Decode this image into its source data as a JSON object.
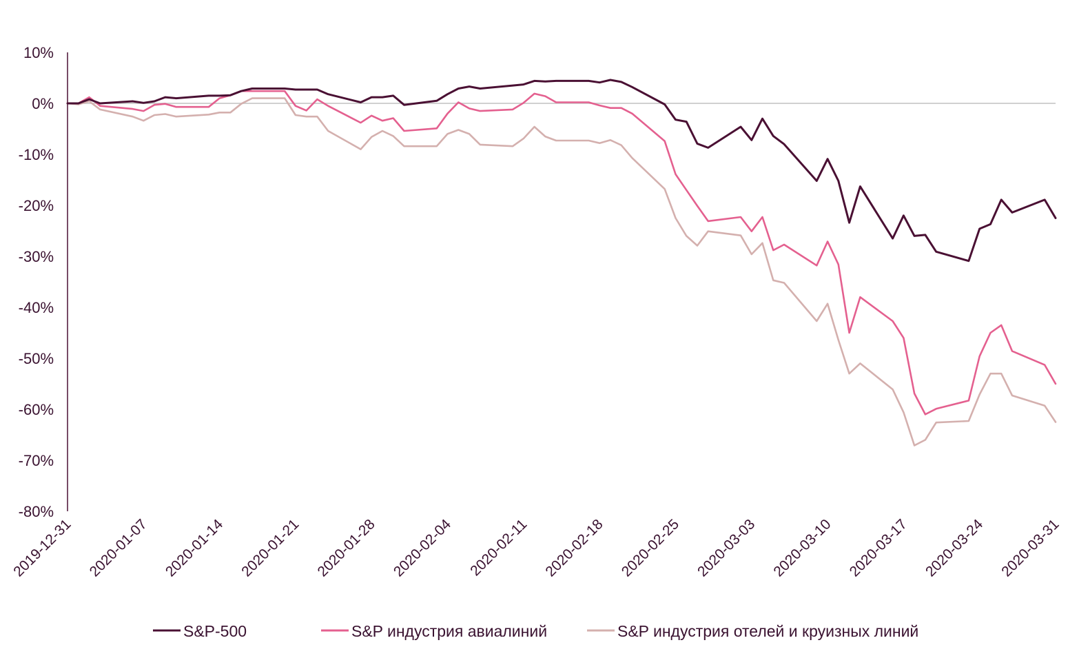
{
  "chart_data": {
    "type": "line",
    "title": "",
    "xlabel": "",
    "ylabel": "",
    "ylim": [
      -80,
      10
    ],
    "y_ticks": [
      "10%",
      "0%",
      "-10%",
      "-20%",
      "-30%",
      "-40%",
      "-50%",
      "-60%",
      "-70%",
      "-80%"
    ],
    "x_range": [
      "2019-12-31",
      "2020-03-31"
    ],
    "x_ticks": [
      "2019-12-31",
      "2020-01-07",
      "2020-01-14",
      "2020-01-21",
      "2020-01-28",
      "2020-02-04",
      "2020-02-11",
      "2020-02-18",
      "2020-02-25",
      "2020-03-03",
      "2020-03-10",
      "2020-03-17",
      "2020-03-24",
      "2020-03-31"
    ],
    "grid": false,
    "zero_line": true,
    "legend_position": "bottom",
    "series": [
      {
        "name": "S&P-500",
        "color": "#4a1033",
        "points": [
          [
            "2019-12-31",
            0
          ],
          [
            "2020-01-01",
            0
          ],
          [
            "2020-01-02",
            0.8
          ],
          [
            "2020-01-03",
            0
          ],
          [
            "2020-01-06",
            0.4
          ],
          [
            "2020-01-07",
            0.1
          ],
          [
            "2020-01-08",
            0.4
          ],
          [
            "2020-01-09",
            1.2
          ],
          [
            "2020-01-10",
            1.0
          ],
          [
            "2020-01-13",
            1.5
          ],
          [
            "2020-01-14",
            1.5
          ],
          [
            "2020-01-15",
            1.6
          ],
          [
            "2020-01-16",
            2.4
          ],
          [
            "2020-01-17",
            2.9
          ],
          [
            "2020-01-20",
            2.9
          ],
          [
            "2020-01-21",
            2.7
          ],
          [
            "2020-01-22",
            2.7
          ],
          [
            "2020-01-23",
            2.7
          ],
          [
            "2020-01-24",
            1.8
          ],
          [
            "2020-01-27",
            0.2
          ],
          [
            "2020-01-28",
            1.2
          ],
          [
            "2020-01-29",
            1.2
          ],
          [
            "2020-01-30",
            1.5
          ],
          [
            "2020-01-31",
            -0.3
          ],
          [
            "2020-02-03",
            0.5
          ],
          [
            "2020-02-04",
            1.8
          ],
          [
            "2020-02-05",
            2.9
          ],
          [
            "2020-02-06",
            3.3
          ],
          [
            "2020-02-07",
            2.9
          ],
          [
            "2020-02-10",
            3.5
          ],
          [
            "2020-02-11",
            3.7
          ],
          [
            "2020-02-12",
            4.4
          ],
          [
            "2020-02-13",
            4.3
          ],
          [
            "2020-02-14",
            4.4
          ],
          [
            "2020-02-17",
            4.4
          ],
          [
            "2020-02-18",
            4.1
          ],
          [
            "2020-02-19",
            4.6
          ],
          [
            "2020-02-20",
            4.2
          ],
          [
            "2020-02-21",
            3.2
          ],
          [
            "2020-02-24",
            -0.2
          ],
          [
            "2020-02-25",
            -3.2
          ],
          [
            "2020-02-26",
            -3.6
          ],
          [
            "2020-02-27",
            -7.9
          ],
          [
            "2020-02-28",
            -8.7
          ],
          [
            "2020-03-02",
            -4.6
          ],
          [
            "2020-03-03",
            -7.2
          ],
          [
            "2020-03-04",
            -3.0
          ],
          [
            "2020-03-05",
            -6.4
          ],
          [
            "2020-03-06",
            -8.0
          ],
          [
            "2020-03-09",
            -15.2
          ],
          [
            "2020-03-10",
            -10.9
          ],
          [
            "2020-03-11",
            -15.2
          ],
          [
            "2020-03-12",
            -23.4
          ],
          [
            "2020-03-13",
            -16.3
          ],
          [
            "2020-03-16",
            -26.5
          ],
          [
            "2020-03-17",
            -22.0
          ],
          [
            "2020-03-18",
            -26.0
          ],
          [
            "2020-03-19",
            -25.8
          ],
          [
            "2020-03-20",
            -29.1
          ],
          [
            "2020-03-23",
            -30.9
          ],
          [
            "2020-03-24",
            -24.6
          ],
          [
            "2020-03-25",
            -23.7
          ],
          [
            "2020-03-26",
            -18.9
          ],
          [
            "2020-03-27",
            -21.4
          ],
          [
            "2020-03-30",
            -18.9
          ],
          [
            "2020-03-31",
            -22.5
          ]
        ]
      },
      {
        "name": "S&P индустрия авиалиний",
        "color": "#e4608f",
        "points": [
          [
            "2019-12-31",
            0
          ],
          [
            "2020-01-01",
            0
          ],
          [
            "2020-01-02",
            1.2
          ],
          [
            "2020-01-03",
            -0.5
          ],
          [
            "2020-01-06",
            -1.1
          ],
          [
            "2020-01-07",
            -1.5
          ],
          [
            "2020-01-08",
            -0.3
          ],
          [
            "2020-01-09",
            -0.1
          ],
          [
            "2020-01-10",
            -0.7
          ],
          [
            "2020-01-13",
            -0.7
          ],
          [
            "2020-01-14",
            1.0
          ],
          [
            "2020-01-15",
            1.6
          ],
          [
            "2020-01-16",
            2.4
          ],
          [
            "2020-01-17",
            2.4
          ],
          [
            "2020-01-20",
            2.4
          ],
          [
            "2020-01-21",
            -0.5
          ],
          [
            "2020-01-22",
            -1.4
          ],
          [
            "2020-01-23",
            0.8
          ],
          [
            "2020-01-24",
            -0.5
          ],
          [
            "2020-01-27",
            -3.8
          ],
          [
            "2020-01-28",
            -2.4
          ],
          [
            "2020-01-29",
            -3.4
          ],
          [
            "2020-01-30",
            -2.9
          ],
          [
            "2020-01-31",
            -5.4
          ],
          [
            "2020-02-03",
            -4.9
          ],
          [
            "2020-02-04",
            -2.0
          ],
          [
            "2020-02-05",
            0.2
          ],
          [
            "2020-02-06",
            -1.0
          ],
          [
            "2020-02-07",
            -1.5
          ],
          [
            "2020-02-10",
            -1.2
          ],
          [
            "2020-02-11",
            0.1
          ],
          [
            "2020-02-12",
            1.9
          ],
          [
            "2020-02-13",
            1.4
          ],
          [
            "2020-02-14",
            0.2
          ],
          [
            "2020-02-17",
            0.2
          ],
          [
            "2020-02-18",
            -0.4
          ],
          [
            "2020-02-19",
            -0.9
          ],
          [
            "2020-02-20",
            -0.9
          ],
          [
            "2020-02-21",
            -2.0
          ],
          [
            "2020-02-24",
            -7.4
          ],
          [
            "2020-02-25",
            -13.9
          ],
          [
            "2020-02-26",
            -17.0
          ],
          [
            "2020-02-27",
            -20.1
          ],
          [
            "2020-02-28",
            -23.1
          ],
          [
            "2020-03-02",
            -22.3
          ],
          [
            "2020-03-03",
            -25.1
          ],
          [
            "2020-03-04",
            -22.3
          ],
          [
            "2020-03-05",
            -28.8
          ],
          [
            "2020-03-06",
            -27.7
          ],
          [
            "2020-03-09",
            -31.8
          ],
          [
            "2020-03-10",
            -27.1
          ],
          [
            "2020-03-11",
            -31.6
          ],
          [
            "2020-03-12",
            -45.0
          ],
          [
            "2020-03-13",
            -38.0
          ],
          [
            "2020-03-16",
            -42.7
          ],
          [
            "2020-03-17",
            -46.0
          ],
          [
            "2020-03-18",
            -56.9
          ],
          [
            "2020-03-19",
            -61.0
          ],
          [
            "2020-03-20",
            -59.9
          ],
          [
            "2020-03-23",
            -58.3
          ],
          [
            "2020-03-24",
            -49.6
          ],
          [
            "2020-03-25",
            -45.0
          ],
          [
            "2020-03-26",
            -43.5
          ],
          [
            "2020-03-27",
            -48.6
          ],
          [
            "2020-03-30",
            -51.3
          ],
          [
            "2020-03-31",
            -55.0
          ]
        ]
      },
      {
        "name": "S&P индустрия отелей и круизных линий",
        "color": "#d4b0ae",
        "points": [
          [
            "2019-12-31",
            0
          ],
          [
            "2020-01-01",
            -0.2
          ],
          [
            "2020-01-02",
            0.4
          ],
          [
            "2020-01-03",
            -1.2
          ],
          [
            "2020-01-06",
            -2.6
          ],
          [
            "2020-01-07",
            -3.4
          ],
          [
            "2020-01-08",
            -2.3
          ],
          [
            "2020-01-09",
            -2.1
          ],
          [
            "2020-01-10",
            -2.6
          ],
          [
            "2020-01-13",
            -2.2
          ],
          [
            "2020-01-14",
            -1.8
          ],
          [
            "2020-01-15",
            -1.8
          ],
          [
            "2020-01-16",
            -0.1
          ],
          [
            "2020-01-17",
            1.0
          ],
          [
            "2020-01-20",
            1.0
          ],
          [
            "2020-01-21",
            -2.3
          ],
          [
            "2020-01-22",
            -2.6
          ],
          [
            "2020-01-23",
            -2.6
          ],
          [
            "2020-01-24",
            -5.4
          ],
          [
            "2020-01-27",
            -9.0
          ],
          [
            "2020-01-28",
            -6.6
          ],
          [
            "2020-01-29",
            -5.4
          ],
          [
            "2020-01-30",
            -6.4
          ],
          [
            "2020-01-31",
            -8.4
          ],
          [
            "2020-02-03",
            -8.4
          ],
          [
            "2020-02-04",
            -6.0
          ],
          [
            "2020-02-05",
            -5.2
          ],
          [
            "2020-02-06",
            -6.0
          ],
          [
            "2020-02-07",
            -8.1
          ],
          [
            "2020-02-10",
            -8.4
          ],
          [
            "2020-02-11",
            -6.9
          ],
          [
            "2020-02-12",
            -4.6
          ],
          [
            "2020-02-13",
            -6.5
          ],
          [
            "2020-02-14",
            -7.3
          ],
          [
            "2020-02-17",
            -7.3
          ],
          [
            "2020-02-18",
            -7.8
          ],
          [
            "2020-02-19",
            -7.2
          ],
          [
            "2020-02-20",
            -8.2
          ],
          [
            "2020-02-21",
            -10.7
          ],
          [
            "2020-02-24",
            -16.8
          ],
          [
            "2020-02-25",
            -22.5
          ],
          [
            "2020-02-26",
            -26.0
          ],
          [
            "2020-02-27",
            -27.9
          ],
          [
            "2020-02-28",
            -25.1
          ],
          [
            "2020-03-02",
            -25.9
          ],
          [
            "2020-03-03",
            -29.6
          ],
          [
            "2020-03-04",
            -27.4
          ],
          [
            "2020-03-05",
            -34.7
          ],
          [
            "2020-03-06",
            -35.2
          ],
          [
            "2020-03-09",
            -42.7
          ],
          [
            "2020-03-10",
            -39.3
          ],
          [
            "2020-03-11",
            -46.4
          ],
          [
            "2020-03-12",
            -53.0
          ],
          [
            "2020-03-13",
            -51.0
          ],
          [
            "2020-03-16",
            -56.1
          ],
          [
            "2020-03-17",
            -60.6
          ],
          [
            "2020-03-18",
            -67.1
          ],
          [
            "2020-03-19",
            -66.0
          ],
          [
            "2020-03-20",
            -62.6
          ],
          [
            "2020-03-23",
            -62.3
          ],
          [
            "2020-03-24",
            -57.1
          ],
          [
            "2020-03-25",
            -53.0
          ],
          [
            "2020-03-26",
            -53.0
          ],
          [
            "2020-03-27",
            -57.3
          ],
          [
            "2020-03-30",
            -59.3
          ],
          [
            "2020-03-31",
            -62.5
          ]
        ]
      }
    ]
  }
}
